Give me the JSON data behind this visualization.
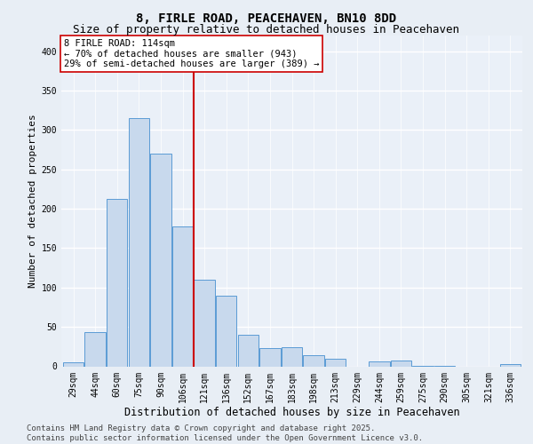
{
  "title": "8, FIRLE ROAD, PEACEHAVEN, BN10 8DD",
  "subtitle": "Size of property relative to detached houses in Peacehaven",
  "xlabel": "Distribution of detached houses by size in Peacehaven",
  "ylabel": "Number of detached properties",
  "categories": [
    "29sqm",
    "44sqm",
    "60sqm",
    "75sqm",
    "90sqm",
    "106sqm",
    "121sqm",
    "136sqm",
    "152sqm",
    "167sqm",
    "183sqm",
    "198sqm",
    "213sqm",
    "229sqm",
    "244sqm",
    "259sqm",
    "275sqm",
    "290sqm",
    "305sqm",
    "321sqm",
    "336sqm"
  ],
  "values": [
    5,
    43,
    212,
    315,
    270,
    178,
    110,
    90,
    40,
    23,
    24,
    14,
    10,
    0,
    6,
    7,
    1,
    1,
    0,
    0,
    3
  ],
  "bar_color": "#c8d9ed",
  "bar_edge_color": "#5b9bd5",
  "vline_x": 6.0,
  "vline_color": "#cc0000",
  "annotation_text": "8 FIRLE ROAD: 114sqm\n← 70% of detached houses are smaller (943)\n29% of semi-detached houses are larger (389) →",
  "annotation_box_color": "#ffffff",
  "annotation_box_edge": "#cc0000",
  "ylim": [
    0,
    420
  ],
  "yticks": [
    0,
    50,
    100,
    150,
    200,
    250,
    300,
    350,
    400
  ],
  "background_color": "#e8eef5",
  "plot_bg_color": "#eaf0f8",
  "grid_color": "#ffffff",
  "footer_text": "Contains HM Land Registry data © Crown copyright and database right 2025.\nContains public sector information licensed under the Open Government Licence v3.0.",
  "title_fontsize": 10,
  "subtitle_fontsize": 9,
  "xlabel_fontsize": 8.5,
  "ylabel_fontsize": 8,
  "tick_fontsize": 7,
  "annotation_fontsize": 7.5,
  "footer_fontsize": 6.5
}
